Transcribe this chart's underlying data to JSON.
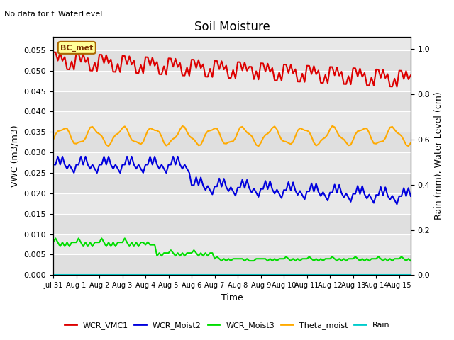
{
  "title": "Soil Moisture",
  "top_left_text": "No data for f_WaterLevel",
  "annotation_text": "BC_met",
  "ylabel_left": "VWC (m3/m3)",
  "ylabel_right": "Rain (mm), Water Level (cm)",
  "xlabel": "Time",
  "ylim_left": [
    0.0,
    0.0583
  ],
  "ylim_right": [
    0.0,
    1.055
  ],
  "yticks_left": [
    0.0,
    0.005,
    0.01,
    0.015,
    0.02,
    0.025,
    0.03,
    0.035,
    0.04,
    0.045,
    0.05,
    0.055
  ],
  "yticks_right": [
    0.0,
    0.2,
    0.4,
    0.6,
    0.8,
    1.0
  ],
  "bg_color": "#e8e8e8",
  "series": {
    "WCR_VMC1": {
      "color": "#dd0000",
      "lw": 1.5
    },
    "WCR_Moist2": {
      "color": "#0000dd",
      "lw": 1.5
    },
    "WCR_Moist3": {
      "color": "#00dd00",
      "lw": 1.5
    },
    "Theta_moist": {
      "color": "#ffaa00",
      "lw": 1.5
    },
    "Rain": {
      "color": "#00cccc",
      "lw": 1.5
    }
  },
  "legend_colors": {
    "WCR_VMC1": "#dd0000",
    "WCR_Moist2": "#0000dd",
    "WCR_Moist3": "#00dd00",
    "Theta_moist": "#ffaa00",
    "Rain": "#00cccc"
  },
  "tick_labels": [
    "Jul 31",
    "Aug 1",
    "Aug 2",
    "Aug 3",
    "Aug 4",
    "Aug 5",
    "Aug 6",
    "Aug 7",
    "Aug 8",
    "Aug 9",
    "Aug 10",
    "Aug 11",
    "Aug 12",
    "Aug 13",
    "Aug 14",
    "Aug 15"
  ]
}
